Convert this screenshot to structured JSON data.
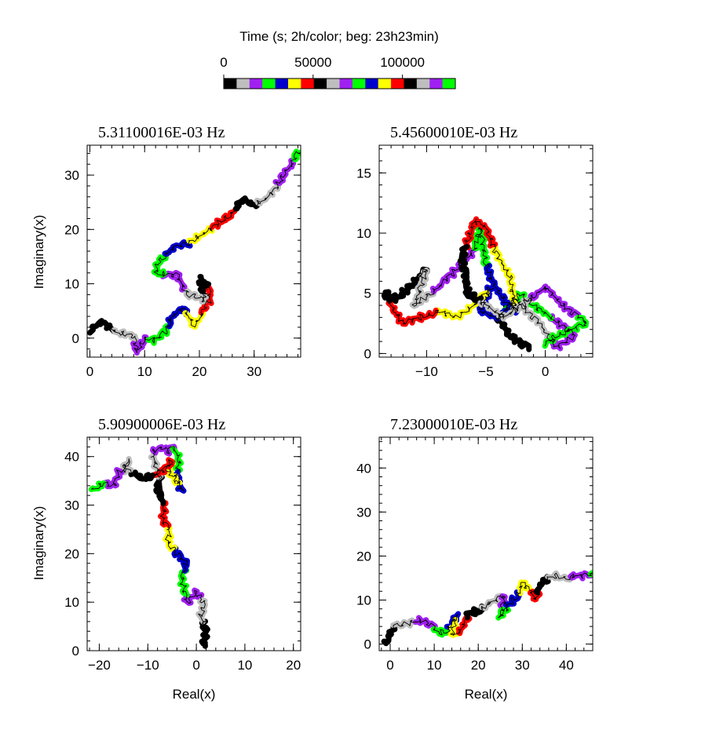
{
  "colorbar": {
    "title": "Time (s; 2h/color; beg: 23h23min)",
    "ticks": [
      0,
      50000,
      100000
    ],
    "tick_labels": [
      "0",
      "50000",
      "100000"
    ],
    "range": [
      0,
      129600
    ],
    "seconds_per_color": 7200,
    "colors": [
      "#000000",
      "#bebebe",
      "#a020f0",
      "#00ff00",
      "#0000cd",
      "#ffff00",
      "#ff0000",
      "#000000",
      "#bebebe",
      "#a020f0",
      "#00ff00",
      "#0000cd",
      "#ffff00",
      "#ff0000",
      "#000000",
      "#bebebe",
      "#a020f0",
      "#00ff00"
    ]
  },
  "chart_data": [
    {
      "type": "line",
      "title": "5.31100016E-03 Hz",
      "xlabel": "",
      "ylabel": "Imaginary(x)",
      "xlim": [
        -0.5,
        38.5
      ],
      "ylim": [
        -3.5,
        35.5
      ],
      "xticks": [
        0,
        10,
        20,
        30
      ],
      "yticks": [
        0,
        10,
        20,
        30
      ],
      "x": [
        0.0,
        2.0,
        5.0,
        8.0,
        8.5,
        10.0,
        12.0,
        14.0,
        15.0,
        17.0,
        19.0,
        20.0,
        22.0,
        21.5,
        20.0,
        21.0,
        18.0,
        17.0,
        16.0,
        12.0,
        12.5,
        15.0,
        18.0,
        22.0,
        26.0,
        28.0,
        30.0,
        32.0,
        34.0,
        35.5,
        37.0,
        38.0
      ],
      "y": [
        1.5,
        3.0,
        1.0,
        0.5,
        -2.5,
        0.0,
        -0.5,
        1.5,
        4.0,
        5.5,
        2.5,
        3.5,
        7.5,
        9.5,
        11.0,
        7.0,
        8.0,
        9.5,
        11.5,
        12.0,
        14.0,
        16.5,
        17.5,
        20.0,
        23.0,
        25.5,
        24.5,
        25.5,
        27.5,
        30.5,
        32.0,
        34.5
      ]
    },
    {
      "type": "line",
      "title": "5.45600010E-03 Hz",
      "xlabel": "",
      "ylabel": "",
      "xlim": [
        -14,
        4
      ],
      "ylim": [
        -0.3,
        17.3
      ],
      "xticks": [
        -10,
        -5,
        0
      ],
      "yticks": [
        0,
        5,
        10,
        15
      ],
      "x": [
        -1.5,
        -3.0,
        -4.0,
        -2.5,
        -0.5,
        1.0,
        2.5,
        0.5,
        -1.0,
        -2.0,
        -4.0,
        -5.5,
        -4.5,
        -6.0,
        -7.5,
        -9.0,
        -10.5,
        -12.0,
        -13.0,
        -13.5,
        -12.5,
        -11.0,
        -10.0,
        -11.0,
        -9.0,
        -8.0,
        -6.0,
        -5.5,
        -5.0,
        -4.5,
        -3.5,
        -2.5,
        -3.0,
        -4.0,
        -5.0,
        -6.0,
        -7.0,
        -6.5,
        -5.0,
        -3.5,
        -2.0,
        0.0,
        1.5,
        3.5,
        1.0,
        0.0
      ],
      "y": [
        0.5,
        1.5,
        3.0,
        4.5,
        2.5,
        0.5,
        1.5,
        3.0,
        4.0,
        5.0,
        3.0,
        3.5,
        5.5,
        4.0,
        3.0,
        3.5,
        3.0,
        2.5,
        4.0,
        5.0,
        4.5,
        6.0,
        7.0,
        4.0,
        5.5,
        6.5,
        8.5,
        10.5,
        7.5,
        6.0,
        4.5,
        3.5,
        6.5,
        8.0,
        10.5,
        11.0,
        8.0,
        5.0,
        4.0,
        3.0,
        4.0,
        5.5,
        4.0,
        2.5,
        1.5,
        0.8
      ]
    },
    {
      "type": "line",
      "title": "5.90900006E-03 Hz",
      "xlabel": "Real(x)",
      "ylabel": "Imaginary(x)",
      "xlim": [
        -22.5,
        21.5
      ],
      "ylim": [
        0,
        44
      ],
      "xticks": [
        -20,
        -10,
        0,
        10,
        20
      ],
      "yticks": [
        0,
        10,
        20,
        30,
        40
      ],
      "x": [
        1.5,
        2.0,
        1.0,
        1.5,
        0.0,
        -2.0,
        -3.0,
        -2.0,
        -4.0,
        -6.0,
        -5.5,
        -7.0,
        -6.5,
        -8.0,
        -7.5,
        -8.5,
        -9.0,
        -7.0,
        -6.0,
        -5.0,
        -3.5,
        -4.0,
        -3.0,
        -4.5,
        -6.0,
        -5.0,
        -7.0,
        -9.0,
        -11.0,
        -13.0,
        -15.0,
        -14.0,
        -16.0,
        -17.0,
        -19.0,
        -21.5
      ],
      "y": [
        1.0,
        4.0,
        7.0,
        10.0,
        12.0,
        10.0,
        15.0,
        18.0,
        20.0,
        22.5,
        25.0,
        27.0,
        30.0,
        33.0,
        36.0,
        38.5,
        41.0,
        42.0,
        41.0,
        42.0,
        40.0,
        36.0,
        33.0,
        35.5,
        37.5,
        39.0,
        37.0,
        36.0,
        35.5,
        36.5,
        37.5,
        39.0,
        36.5,
        34.0,
        34.5,
        33.0
      ]
    },
    {
      "type": "line",
      "title": "7.23000010E-03 Hz",
      "xlabel": "Real(x)",
      "ylabel": "",
      "xlim": [
        -2.5,
        46
      ],
      "ylim": [
        -1.5,
        47
      ],
      "xticks": [
        0,
        10,
        20,
        30,
        40
      ],
      "yticks": [
        0,
        10,
        20,
        30,
        40
      ],
      "x": [
        -1.0,
        0.0,
        1.0,
        3.0,
        5.0,
        7.0,
        9.0,
        11.0,
        13.0,
        14.0,
        15.0,
        14.0,
        16.0,
        18.0,
        20.0,
        22.0,
        24.0,
        26.0,
        25.0,
        27.0,
        29.0,
        30.0,
        32.0,
        33.0,
        34.0,
        36.0,
        38.0,
        40.0,
        42.0,
        44.0,
        46.0
      ],
      "y": [
        0.0,
        2.5,
        4.0,
        4.5,
        5.0,
        5.5,
        4.5,
        2.5,
        3.0,
        5.0,
        6.5,
        2.0,
        3.0,
        7.0,
        7.5,
        9.0,
        10.0,
        11.0,
        6.0,
        9.0,
        11.0,
        14.0,
        12.0,
        10.0,
        13.5,
        15.0,
        15.5,
        15.0,
        15.5,
        15.5,
        16.0
      ]
    }
  ]
}
